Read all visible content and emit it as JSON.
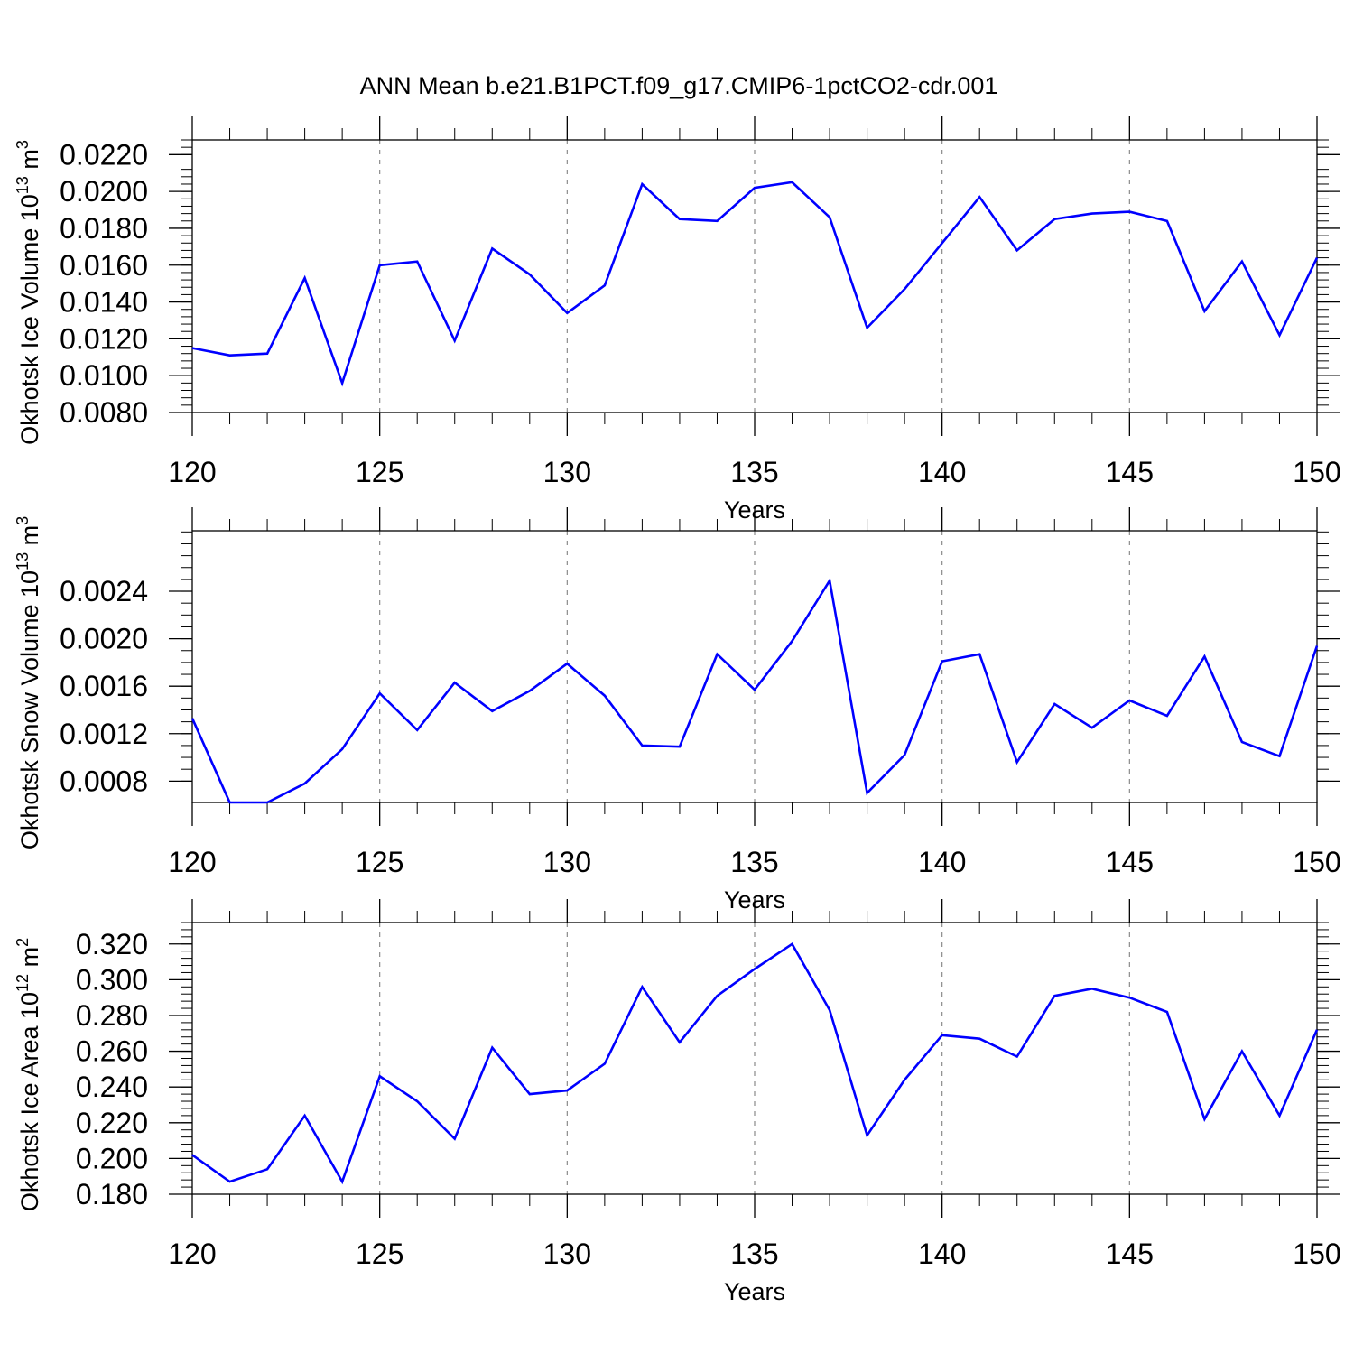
{
  "figure": {
    "title": "ANN Mean b.e21.B1PCT.f09_g17.CMIP6-1pctCO2-cdr.001",
    "line_color": "#0000ff"
  },
  "chart_data": [
    {
      "type": "line",
      "xlabel": "Years",
      "ylabel": {
        "prefix": "Okhotsk Ice Volume 10",
        "exponent": "13",
        "unit": " m",
        "unit_power": "3"
      },
      "xlim": [
        120,
        150
      ],
      "ylim": [
        0.008,
        0.0228
      ],
      "x_ticks": [
        "120",
        "125",
        "130",
        "135",
        "140",
        "145",
        "150"
      ],
      "y_ticks": [
        {
          "value": 0.008,
          "label": "0.0080"
        },
        {
          "value": 0.01,
          "label": "0.0100"
        },
        {
          "value": 0.012,
          "label": "0.0120"
        },
        {
          "value": 0.014,
          "label": "0.0140"
        },
        {
          "value": 0.016,
          "label": "0.0160"
        },
        {
          "value": 0.018,
          "label": "0.0180"
        },
        {
          "value": 0.02,
          "label": "0.0200"
        },
        {
          "value": 0.022,
          "label": "0.0220"
        }
      ],
      "y_minor_step": 0.0004,
      "grid": "vertical dashed at labeled years",
      "x": [
        120,
        121,
        122,
        123,
        124,
        125,
        126,
        127,
        128,
        129,
        130,
        131,
        132,
        133,
        134,
        135,
        136,
        137,
        138,
        139,
        140,
        141,
        142,
        143,
        144,
        145,
        146,
        147,
        148,
        149,
        150
      ],
      "y": [
        0.0115,
        0.0111,
        0.0112,
        0.0153,
        0.0096,
        0.016,
        0.0162,
        0.0119,
        0.0169,
        0.0155,
        0.0134,
        0.0149,
        0.0204,
        0.0185,
        0.0184,
        0.0202,
        0.0205,
        0.0186,
        0.0126,
        0.0147,
        0.0172,
        0.0197,
        0.0168,
        0.0185,
        0.0188,
        0.0189,
        0.0184,
        0.0135,
        0.0162,
        0.0122,
        0.0164
      ]
    },
    {
      "type": "line",
      "xlabel": "Years",
      "ylabel": {
        "prefix": "Okhotsk Snow Volume 10",
        "exponent": "13",
        "unit": " m",
        "unit_power": "3"
      },
      "xlim": [
        120,
        150
      ],
      "ylim": [
        0.00062,
        0.00291
      ],
      "x_ticks": [
        "120",
        "125",
        "130",
        "135",
        "140",
        "145",
        "150"
      ],
      "y_ticks": [
        {
          "value": 0.0008,
          "label": "0.0008"
        },
        {
          "value": 0.0012,
          "label": "0.0012"
        },
        {
          "value": 0.0016,
          "label": "0.0016"
        },
        {
          "value": 0.002,
          "label": "0.0020"
        },
        {
          "value": 0.0024,
          "label": "0.0024"
        }
      ],
      "y_minor_step": 0.0001,
      "grid": "vertical dashed at labeled years",
      "x": [
        120,
        121,
        122,
        123,
        124,
        125,
        126,
        127,
        128,
        129,
        130,
        131,
        132,
        133,
        134,
        135,
        136,
        137,
        138,
        139,
        140,
        141,
        142,
        143,
        144,
        145,
        146,
        147,
        148,
        149,
        150
      ],
      "y": [
        0.00133,
        0.00062,
        0.00062,
        0.00078,
        0.00107,
        0.00154,
        0.00123,
        0.00163,
        0.00139,
        0.00156,
        0.00179,
        0.00152,
        0.0011,
        0.00109,
        0.00187,
        0.00157,
        0.00198,
        0.00249,
        0.0007,
        0.00102,
        0.00181,
        0.00187,
        0.00096,
        0.00145,
        0.00125,
        0.00148,
        0.00135,
        0.00185,
        0.00113,
        0.00101,
        0.00194
      ]
    },
    {
      "type": "line",
      "xlabel": "Years",
      "ylabel": {
        "prefix": "Okhotsk Ice Area 10",
        "exponent": "12",
        "unit": " m",
        "unit_power": "2"
      },
      "xlim": [
        120,
        150
      ],
      "ylim": [
        0.18,
        0.332
      ],
      "x_ticks": [
        "120",
        "125",
        "130",
        "135",
        "140",
        "145",
        "150"
      ],
      "y_ticks": [
        {
          "value": 0.18,
          "label": "0.180"
        },
        {
          "value": 0.2,
          "label": "0.200"
        },
        {
          "value": 0.22,
          "label": "0.220"
        },
        {
          "value": 0.24,
          "label": "0.240"
        },
        {
          "value": 0.26,
          "label": "0.260"
        },
        {
          "value": 0.28,
          "label": "0.280"
        },
        {
          "value": 0.3,
          "label": "0.300"
        },
        {
          "value": 0.32,
          "label": "0.320"
        }
      ],
      "y_minor_step": 0.004,
      "grid": "vertical dashed at labeled years",
      "x": [
        120,
        121,
        122,
        123,
        124,
        125,
        126,
        127,
        128,
        129,
        130,
        131,
        132,
        133,
        134,
        135,
        136,
        137,
        138,
        139,
        140,
        141,
        142,
        143,
        144,
        145,
        146,
        147,
        148,
        149,
        150
      ],
      "y": [
        0.202,
        0.187,
        0.194,
        0.224,
        0.187,
        0.246,
        0.232,
        0.211,
        0.262,
        0.236,
        0.238,
        0.253,
        0.296,
        0.265,
        0.291,
        0.306,
        0.32,
        0.283,
        0.213,
        0.244,
        0.269,
        0.267,
        0.257,
        0.291,
        0.295,
        0.29,
        0.282,
        0.222,
        0.26,
        0.224,
        0.272
      ]
    }
  ]
}
